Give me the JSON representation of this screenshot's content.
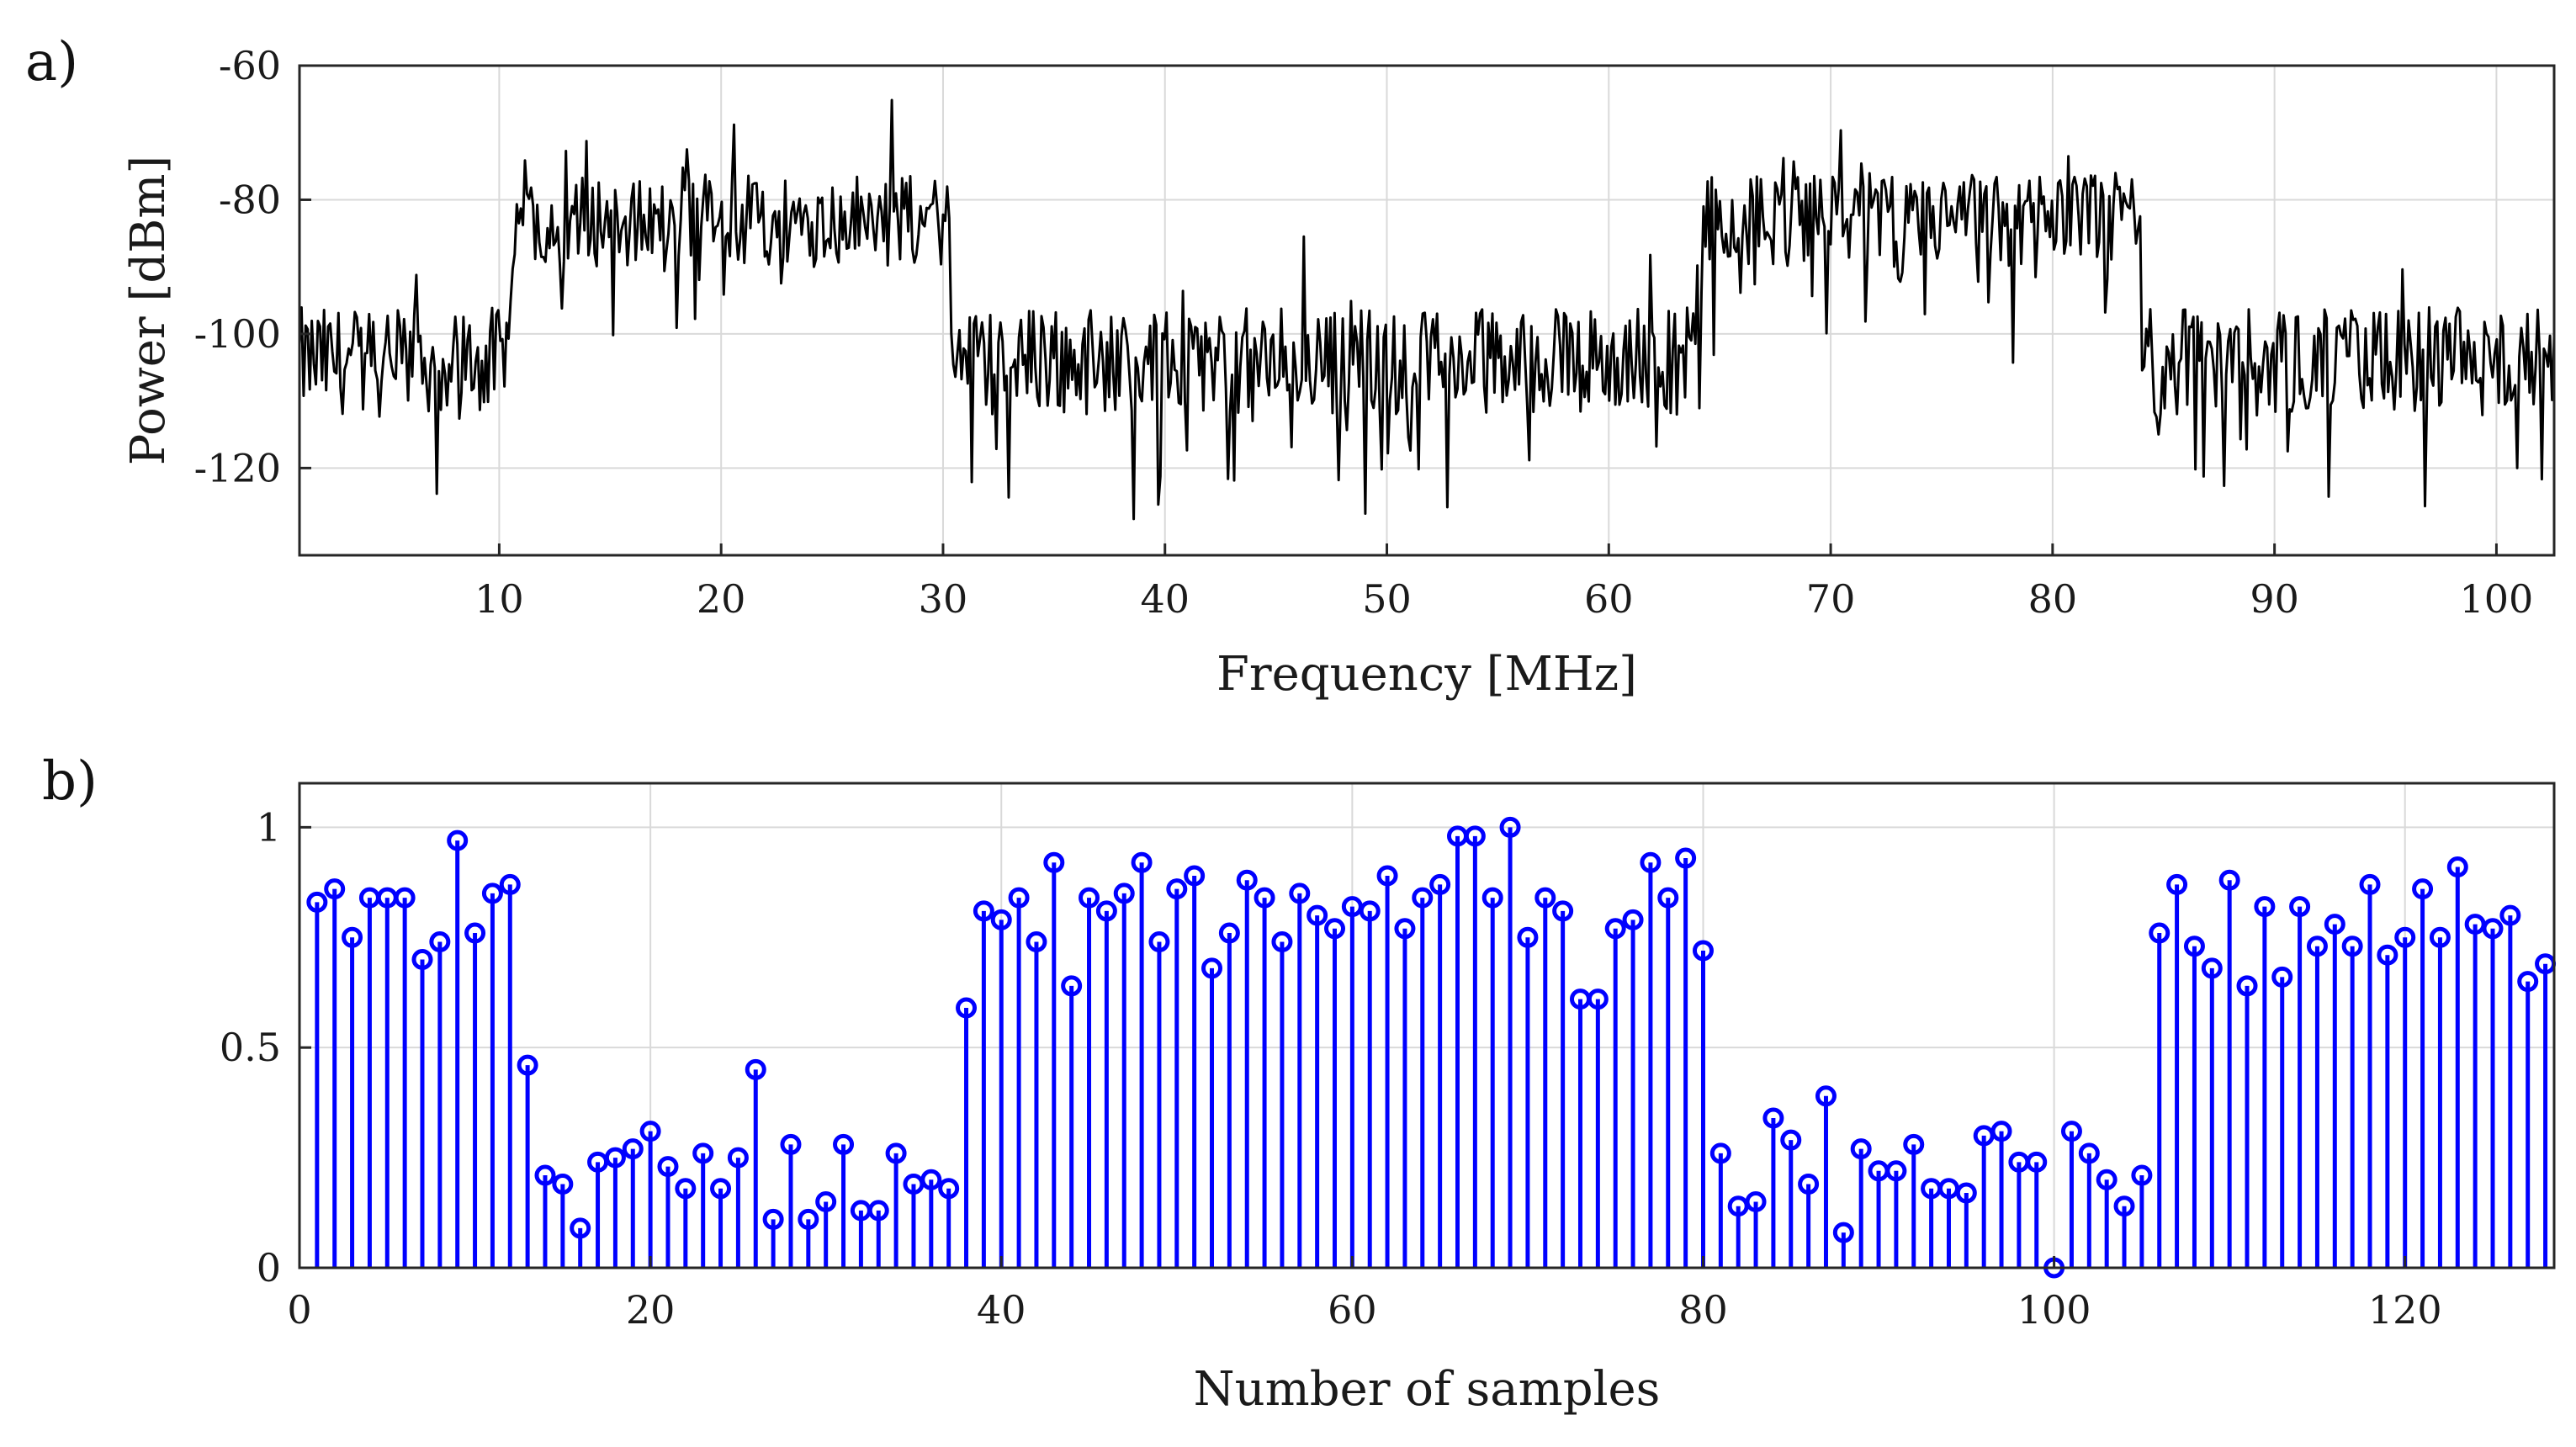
{
  "chart_data": [
    {
      "type": "line",
      "panel_label": "a)",
      "xlabel": "Frequency [MHz]",
      "ylabel": "Power [dBm]",
      "xlim": [
        1,
        102.6
      ],
      "ylim": [
        -133,
        -60
      ],
      "xticks": [
        10,
        20,
        30,
        40,
        50,
        60,
        70,
        80,
        90,
        100
      ],
      "yticks": [
        -60,
        -80,
        -100,
        -120
      ],
      "grid": true,
      "line_color": "#000000",
      "bands": [
        {
          "from": 1,
          "to": 10.5,
          "level": -104,
          "noise": 8
        },
        {
          "from": 10.5,
          "to": 30.3,
          "level": -83,
          "noise": 7
        },
        {
          "from": 30.3,
          "to": 64.2,
          "level": -104,
          "noise": 8
        },
        {
          "from": 64.2,
          "to": 84.0,
          "level": -83,
          "noise": 7
        },
        {
          "from": 84.0,
          "to": 102.6,
          "level": -104,
          "noise": 8
        }
      ],
      "points_count": 1100
    },
    {
      "type": "stem",
      "panel_label": "b)",
      "xlabel": "Number of samples",
      "ylabel": "",
      "xlim": [
        0,
        128.5
      ],
      "ylim": [
        0,
        1.1
      ],
      "xticks": [
        0,
        20,
        40,
        60,
        80,
        100,
        120
      ],
      "yticks": [
        0,
        0.5,
        1
      ],
      "ytick_labels": [
        "0",
        "0.5",
        "1"
      ],
      "grid": true,
      "color": "#0000ff",
      "x": [
        1,
        2,
        3,
        4,
        5,
        6,
        7,
        8,
        9,
        10,
        11,
        12,
        13,
        14,
        15,
        16,
        17,
        18,
        19,
        20,
        21,
        22,
        23,
        24,
        25,
        26,
        27,
        28,
        29,
        30,
        31,
        32,
        33,
        34,
        35,
        36,
        37,
        38,
        39,
        40,
        41,
        42,
        43,
        44,
        45,
        46,
        47,
        48,
        49,
        50,
        51,
        52,
        53,
        54,
        55,
        56,
        57,
        58,
        59,
        60,
        61,
        62,
        63,
        64,
        65,
        66,
        67,
        68,
        69,
        70,
        71,
        72,
        73,
        74,
        75,
        76,
        77,
        78,
        79,
        80,
        81,
        82,
        83,
        84,
        85,
        86,
        87,
        88,
        89,
        90,
        91,
        92,
        93,
        94,
        95,
        96,
        97,
        98,
        99,
        100,
        101,
        102,
        103,
        104,
        105,
        106,
        107,
        108,
        109,
        110,
        111,
        112,
        113,
        114,
        115,
        116,
        117,
        118,
        119,
        120,
        121,
        122,
        123,
        124,
        125,
        126,
        127,
        128
      ],
      "values": [
        0.83,
        0.86,
        0.75,
        0.84,
        0.84,
        0.84,
        0.7,
        0.74,
        0.97,
        0.76,
        0.85,
        0.87,
        0.46,
        0.21,
        0.19,
        0.09,
        0.24,
        0.25,
        0.27,
        0.31,
        0.23,
        0.18,
        0.26,
        0.18,
        0.25,
        0.45,
        0.11,
        0.28,
        0.11,
        0.15,
        0.28,
        0.13,
        0.13,
        0.26,
        0.19,
        0.2,
        0.18,
        0.59,
        0.81,
        0.79,
        0.84,
        0.74,
        0.92,
        0.64,
        0.84,
        0.81,
        0.85,
        0.92,
        0.74,
        0.86,
        0.89,
        0.68,
        0.76,
        0.88,
        0.84,
        0.74,
        0.85,
        0.8,
        0.77,
        0.82,
        0.81,
        0.89,
        0.77,
        0.84,
        0.87,
        0.98,
        0.98,
        0.84,
        1.0,
        0.75,
        0.84,
        0.81,
        0.61,
        0.61,
        0.77,
        0.79,
        0.92,
        0.84,
        0.93,
        0.72,
        0.26,
        0.14,
        0.15,
        0.34,
        0.29,
        0.19,
        0.39,
        0.08,
        0.27,
        0.22,
        0.22,
        0.28,
        0.18,
        0.18,
        0.17,
        0.3,
        0.31,
        0.24,
        0.24,
        0.0,
        0.31,
        0.26,
        0.2,
        0.14,
        0.21,
        0.76,
        0.87,
        0.73,
        0.68,
        0.88,
        0.64,
        0.82,
        0.66,
        0.82,
        0.73,
        0.78,
        0.73,
        0.87,
        0.71,
        0.75,
        0.86,
        0.75,
        0.91,
        0.78,
        0.77,
        0.8,
        0.65,
        0.69
      ]
    }
  ]
}
